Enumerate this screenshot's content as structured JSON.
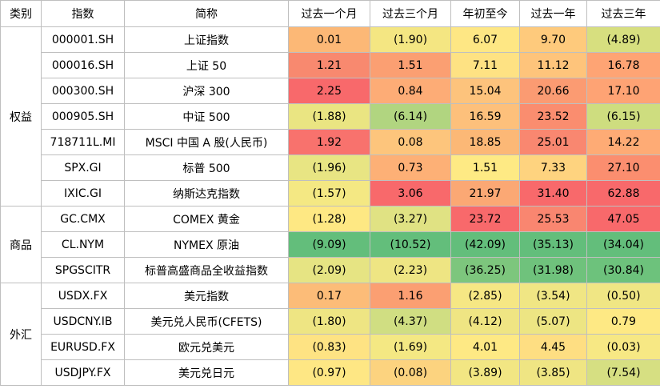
{
  "headers": [
    "类别",
    "指数",
    "简称",
    "过去一个月",
    "过去三个月",
    "年初至今",
    "过去一年",
    "过去三年"
  ],
  "groups": [
    {
      "category": "权益",
      "rows": [
        {
          "code": "000001.SH",
          "name": "上证指数",
          "values": [
            "0.01",
            "(1.90)",
            "6.07",
            "9.70",
            "(4.89)"
          ],
          "colors": [
            "#FCB876",
            "#F4E682",
            "#FEE784",
            "#FECA7C",
            "#D7DF7F"
          ]
        },
        {
          "code": "000016.SH",
          "name": "上证 50",
          "values": [
            "1.21",
            "1.51",
            "7.11",
            "11.12",
            "16.78"
          ],
          "colors": [
            "#F8896F",
            "#FB9F72",
            "#FEE283",
            "#FEC47B",
            "#FEA474"
          ]
        },
        {
          "code": "000300.SH",
          "name": "沪深 300",
          "values": [
            "2.25",
            "0.84",
            "15.04",
            "20.66",
            "17.10"
          ],
          "colors": [
            "#F8696B",
            "#FDAC76",
            "#FDC37C",
            "#FB9B72",
            "#FEA374"
          ]
        },
        {
          "code": "000905.SH",
          "name": "中证 500",
          "values": [
            "(1.88)",
            "(6.14)",
            "16.59",
            "23.52",
            "(6.15)"
          ],
          "colors": [
            "#EAE582",
            "#B1D580",
            "#FDC07B",
            "#FA8D6F",
            "#CEDD7F"
          ]
        },
        {
          "code": "718711L.MI",
          "name": "MSCI 中国 A 股(人民币)",
          "values": [
            "1.92",
            "0.08",
            "18.85",
            "25.01",
            "14.22"
          ],
          "colors": [
            "#F8726D",
            "#FDC57C",
            "#FCB876",
            "#F98770",
            "#FEAB75"
          ]
        },
        {
          "code": "SPX.GI",
          "name": "标普 500",
          "values": [
            "(1.96)",
            "0.73",
            "1.51",
            "7.33",
            "27.10"
          ],
          "colors": [
            "#E8E583",
            "#FDB076",
            "#FEEA84",
            "#FED37F",
            "#FB8E6F"
          ]
        },
        {
          "code": "IXIC.GI",
          "name": "纳斯达克指数",
          "values": [
            "(1.57)",
            "3.06",
            "21.97",
            "31.40",
            "62.88"
          ],
          "colors": [
            "#F4E883",
            "#F8696B",
            "#FBA874",
            "#F8696B",
            "#F8696B"
          ]
        }
      ]
    },
    {
      "category": "商品",
      "rows": [
        {
          "code": "GC.CMX",
          "name": "COMEX 黄金",
          "values": [
            "(1.28)",
            "(3.27)",
            "23.72",
            "25.53",
            "47.05"
          ],
          "colors": [
            "#FEE883",
            "#E0E283",
            "#F8696B",
            "#F98670",
            "#F8696B"
          ]
        },
        {
          "code": "CL.NYM",
          "name": "NYMEX 原油",
          "values": [
            "(9.09)",
            "(10.52)",
            "(42.09)",
            "(35.13)",
            "(34.04)"
          ],
          "colors": [
            "#63BE7B",
            "#63BE7B",
            "#63BE7B",
            "#63BE7B",
            "#63BE7B"
          ]
        },
        {
          "code": "SPGSCITR",
          "name": "标普高盛商品全收益指数",
          "values": [
            "(2.09)",
            "(2.23)",
            "(36.25)",
            "(31.98)",
            "(30.84)"
          ],
          "colors": [
            "#E6E483",
            "#EEE583",
            "#7DC67D",
            "#6FC27C",
            "#6DC27C"
          ]
        }
      ]
    },
    {
      "category": "外汇",
      "rows": [
        {
          "code": "USDX.FX",
          "name": "美元指数",
          "values": [
            "0.17",
            "1.16",
            "(2.85)",
            "(3.54)",
            "(0.50)"
          ],
          "colors": [
            "#FCBC78",
            "#FB9F72",
            "#F6E784",
            "#F0E684",
            "#F0E684"
          ]
        },
        {
          "code": "USDCNY.IB",
          "name": "美元兑人民币(CFETS)",
          "values": [
            "(1.80)",
            "(4.37)",
            "(4.12)",
            "(5.07)",
            "0.79"
          ],
          "colors": [
            "#EEE583",
            "#D0DE82",
            "#EFE583",
            "#EDE583",
            "#FEE984"
          ]
        },
        {
          "code": "EURUSD.FX",
          "name": "欧元兑美元",
          "values": [
            "(0.83)",
            "(1.69)",
            "4.01",
            "4.45",
            "(0.03)"
          ],
          "colors": [
            "#FEE383",
            "#F4E883",
            "#FEE984",
            "#FEDE82",
            "#F7E884"
          ]
        },
        {
          "code": "USDJPY.FX",
          "name": "美元兑日元",
          "values": [
            "(0.97)",
            "(0.08)",
            "(3.89)",
            "(3.85)",
            "(7.54)"
          ],
          "colors": [
            "#FEE784",
            "#FCD37F",
            "#F2E683",
            "#EFE583",
            "#D6DF82"
          ]
        }
      ]
    }
  ]
}
